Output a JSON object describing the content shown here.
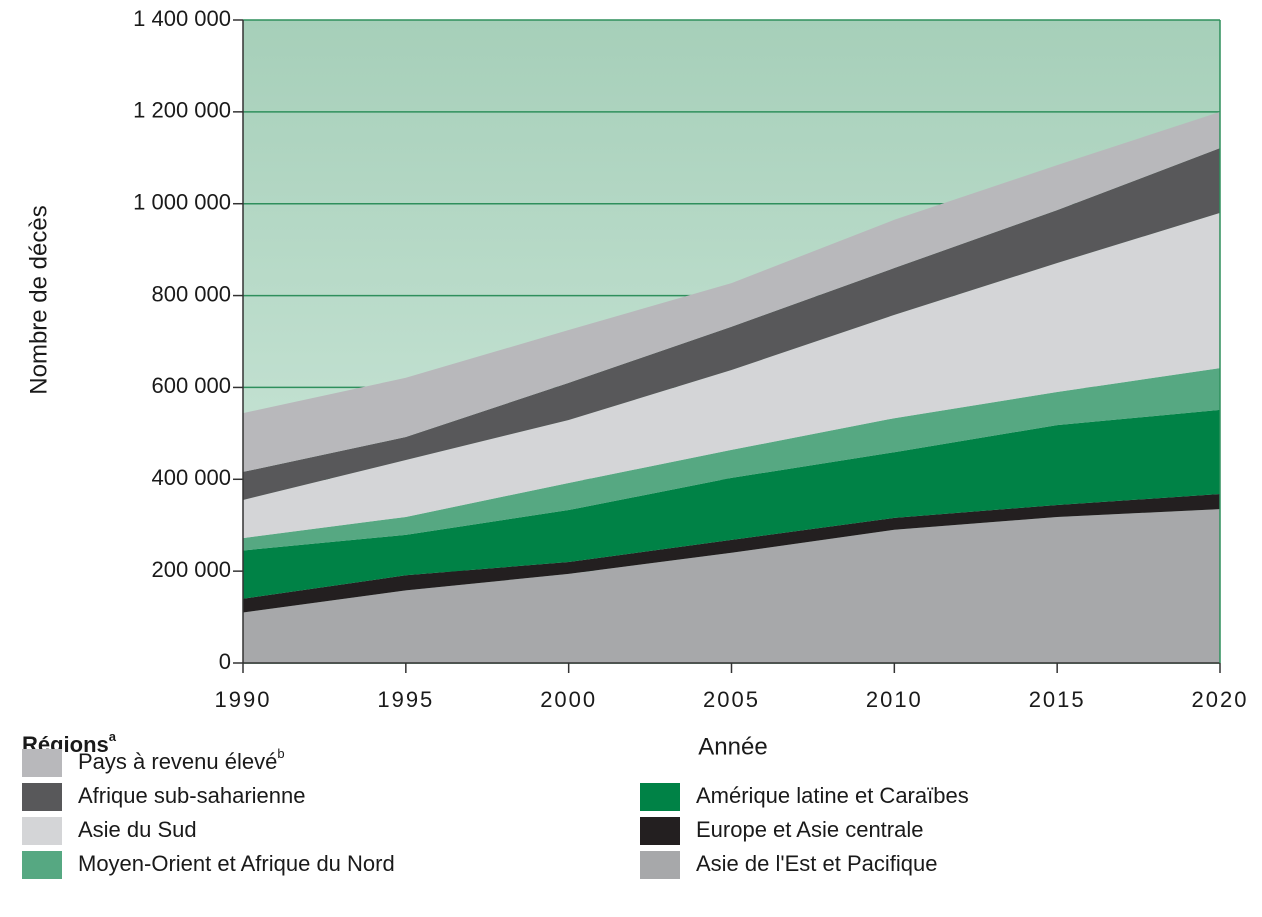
{
  "chart_data": {
    "type": "stacked_area",
    "y_label": "Nombre de décès",
    "x_label": "Année",
    "legend_title": "Régions",
    "legend_title_note": "a",
    "x": [
      1990,
      1995,
      2000,
      2005,
      2010,
      2015,
      2020
    ],
    "xlim": [
      1990,
      2020
    ],
    "xticks": [
      1990,
      1995,
      2000,
      2005,
      2010,
      2015,
      2020
    ],
    "ylim": [
      0,
      1400000
    ],
    "yticks": [
      0,
      {
        "value": 200000,
        "label": "200 000"
      },
      {
        "value": 400000,
        "label": "400 000"
      },
      {
        "value": 600000,
        "label": "600 000"
      },
      {
        "value": 800000,
        "label": "800 000"
      },
      {
        "value": 1000000,
        "label": "1 000 000"
      },
      {
        "value": 1200000,
        "label": "1 200 000"
      },
      {
        "value": 1400000,
        "label": "1 400 000"
      }
    ],
    "grid": true,
    "series": [
      {
        "name": "Asie de l'Est et Pacifique",
        "color": "#a7a8aa",
        "values": [
          110000,
          158000,
          194000,
          240000,
          290000,
          318000,
          335000
        ]
      },
      {
        "name": "Europe et Asie centrale",
        "color": "#231f20",
        "values": [
          30000,
          33000,
          26000,
          28000,
          26000,
          26000,
          33000
        ]
      },
      {
        "name": "Amérique latine et Caraïbes",
        "color": "#008246",
        "values": [
          105000,
          88000,
          113000,
          135000,
          143000,
          174000,
          183000
        ]
      },
      {
        "name": "Moyen-Orient et Afrique du Nord",
        "color": "#56a882",
        "values": [
          27000,
          39000,
          59000,
          61000,
          74000,
          72000,
          91000
        ]
      },
      {
        "name": "Asie du Sud",
        "color": "#d4d5d7",
        "values": [
          83000,
          124000,
          137000,
          174000,
          225000,
          281000,
          338000
        ]
      },
      {
        "name": "Afrique sub-saharienne",
        "color": "#58585a",
        "values": [
          61000,
          50000,
          81000,
          94000,
          102000,
          115000,
          141000
        ]
      },
      {
        "name": "Pays à revenu élevé",
        "note": "b",
        "color": "#b8b8bb",
        "values": [
          128000,
          129000,
          115000,
          95000,
          105000,
          98000,
          79000
        ]
      }
    ]
  }
}
